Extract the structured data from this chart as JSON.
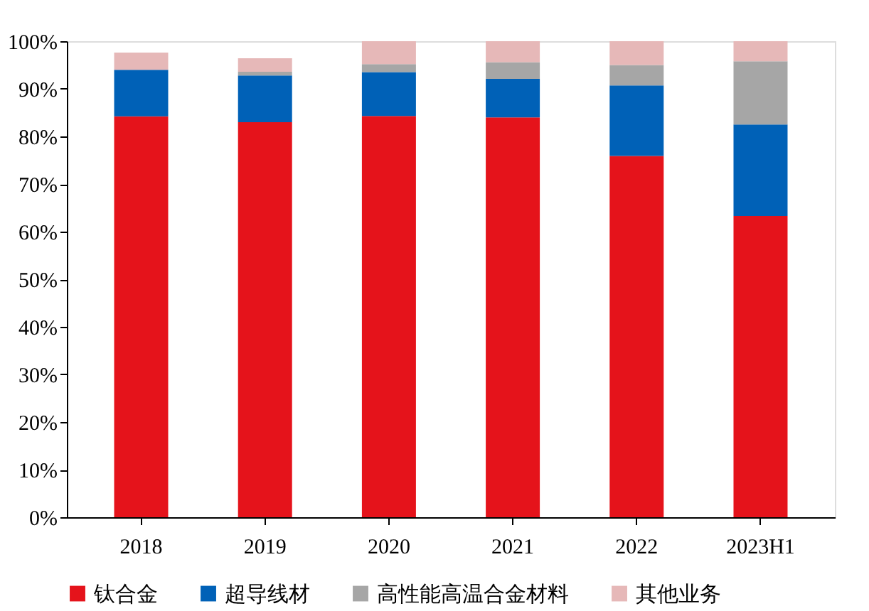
{
  "chart_data": {
    "type": "bar",
    "stacked": true,
    "categories": [
      "2018",
      "2019",
      "2020",
      "2021",
      "2022",
      "2023H1"
    ],
    "series": [
      {
        "name": "钛合金",
        "color": "#e5131b",
        "values": [
          84.2,
          83,
          84.3,
          84,
          75.9,
          63.3
        ]
      },
      {
        "name": "超导线材",
        "color": "#0061b7",
        "values": [
          9.8,
          9.8,
          9.2,
          8.1,
          14.8,
          19.2
        ]
      },
      {
        "name": "高性能高温合金材料",
        "color": "#a6a6a6",
        "values": [
          null,
          0.8,
          1.7,
          3.5,
          4.3,
          13.3
        ]
      },
      {
        "name": "其他业务",
        "color": "#e6b8b8",
        "values": [
          3.6,
          2.8,
          4.8,
          4.4,
          5,
          4.2
        ]
      }
    ],
    "ylim": [
      0,
      100
    ],
    "yticks": [
      {
        "value": 0,
        "label": "0%"
      },
      {
        "value": 10,
        "label": "10%"
      },
      {
        "value": 20,
        "label": "20%"
      },
      {
        "value": 30,
        "label": "30%"
      },
      {
        "value": 40,
        "label": "40%"
      },
      {
        "value": 50,
        "label": "50%"
      },
      {
        "value": 60,
        "label": "60%"
      },
      {
        "value": 70,
        "label": "70%"
      },
      {
        "value": 80,
        "label": "80%"
      },
      {
        "value": 90,
        "label": "90%"
      },
      {
        "value": 100,
        "label": "100%"
      }
    ],
    "grid": false,
    "legend": "bottom"
  }
}
